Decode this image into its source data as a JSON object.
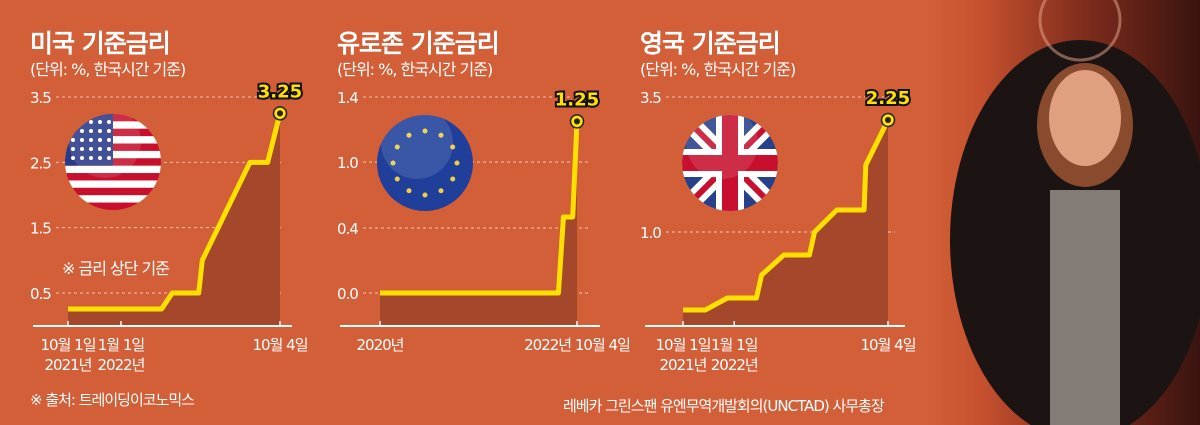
{
  "charts_header": [
    {
      "title": "미국 기준금리",
      "subtitle": "(단위: %, 한국시간 기준)"
    },
    {
      "title": "유로존 기준금리",
      "subtitle": "(단위: %, 한국시간 기준)"
    },
    {
      "title": "영국 기준금리",
      "subtitle": "(단위: %, 한국시간 기준)"
    }
  ],
  "us_note": "※ 금리 상단 기준",
  "source": "※ 출처: 트레이딩이코노믹스",
  "photo_caption": "레베카 그린스팬 유엔무역개발회의(UNCTAD) 사무총장",
  "colors": {
    "background": "#d35f38",
    "line": "#ffe000",
    "area": "#a4472a"
  },
  "chart_data": [
    {
      "type": "area",
      "title": "미국 기준금리",
      "flag": "us-flag-icon",
      "xunit": "months since 2021-10-01",
      "yticks": [
        0.5,
        1.5,
        2.5,
        3.5
      ],
      "ytick_labels": [
        "0.5",
        "1.5",
        "2.5",
        "3.5"
      ],
      "xticks": [
        {
          "x": 0,
          "label": [
            "10월 1일",
            "2021년"
          ]
        },
        {
          "x": 3,
          "label": [
            "1월 1일",
            "2022년"
          ]
        },
        {
          "x": 12,
          "label": [
            "10월 4일"
          ]
        }
      ],
      "x": [
        0,
        5.3,
        5.9,
        7.4,
        7.6,
        10.3,
        11.3,
        12
      ],
      "y": [
        0.25,
        0.25,
        0.5,
        0.5,
        1.0,
        2.5,
        2.5,
        3.25
      ],
      "end_label": "3.25"
    },
    {
      "type": "area",
      "title": "유로존 기준금리",
      "flag": "eu-flag-icon",
      "xunit": "year",
      "yticks": [
        0.0,
        0.4,
        1.0,
        1.4
      ],
      "ytick_labels": [
        "0.0",
        "0.4",
        "1.0",
        "1.4"
      ],
      "xticks": [
        {
          "x": 2020,
          "label": [
            "2020년"
          ]
        },
        {
          "x": 2022.76,
          "label": [
            "2022년 10월 4일"
          ]
        }
      ],
      "x": [
        2020,
        2022.5,
        2022.57,
        2022.7,
        2022.76
      ],
      "y": [
        0,
        0,
        0.5,
        0.5,
        1.25
      ],
      "end_label": "1.25"
    },
    {
      "type": "area",
      "title": "영국 기준금리",
      "flag": "uk-flag-icon",
      "xunit": "months since 2021-10-01",
      "yticks": [
        1.0,
        3.5
      ],
      "ytick_labels": [
        "1.0",
        "3.5"
      ],
      "xticks": [
        {
          "x": 0,
          "label": [
            "10월 1일",
            "2021년"
          ]
        },
        {
          "x": 3,
          "label": [
            "1월 1일",
            "2022년"
          ]
        },
        {
          "x": 12,
          "label": [
            "10월 4일"
          ]
        }
      ],
      "x": [
        0,
        1.3,
        2.6,
        4.3,
        4.6,
        5.9,
        7.4,
        7.7,
        9.0,
        10.6,
        10.7,
        12
      ],
      "y": [
        0.1,
        0.1,
        0.25,
        0.25,
        0.5,
        0.75,
        0.75,
        1.0,
        1.25,
        1.25,
        1.75,
        2.25
      ],
      "end_label": "2.25"
    }
  ]
}
